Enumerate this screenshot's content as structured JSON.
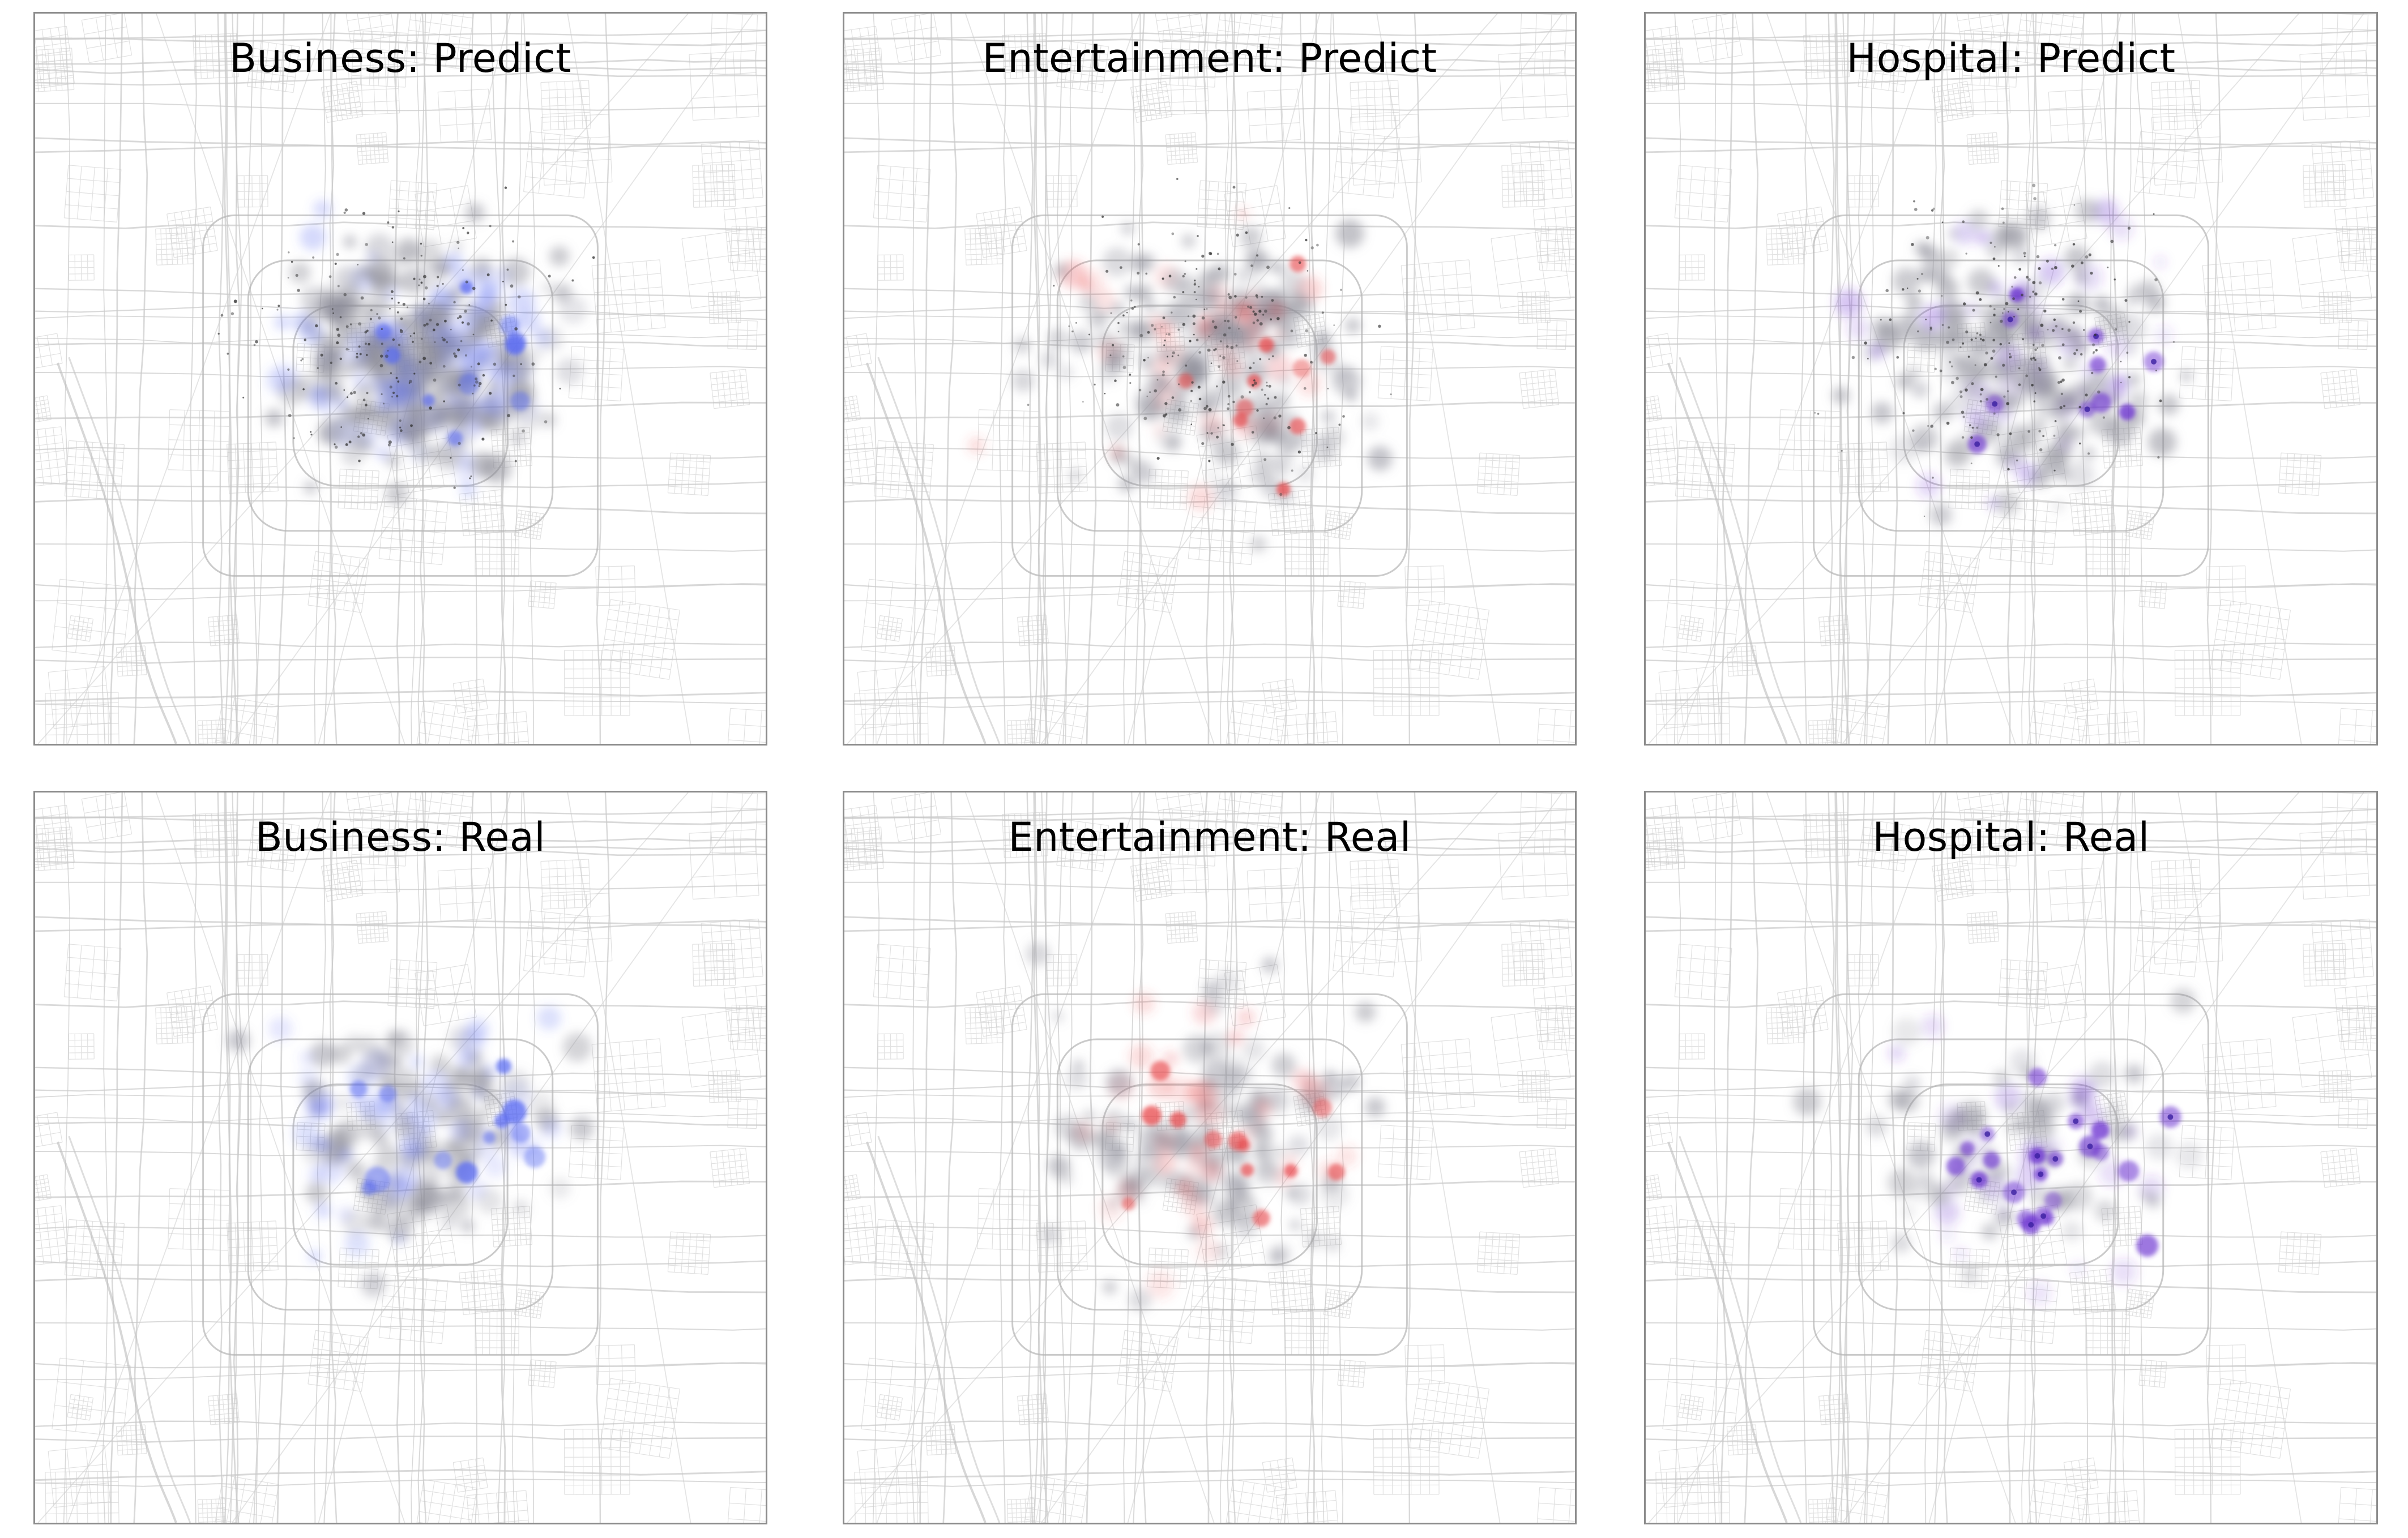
{
  "figure": {
    "panels": [
      {
        "title": "Business: Predict",
        "category": "business",
        "kind": "predict",
        "accent": "#5b6cf2"
      },
      {
        "title": "Entertainment: Predict",
        "category": "entertainment",
        "kind": "predict",
        "accent": "#e8474a"
      },
      {
        "title": "Hospital: Predict",
        "category": "hospital",
        "kind": "predict",
        "accent": "#6a2fd0"
      },
      {
        "title": "Business: Real",
        "category": "business",
        "kind": "real",
        "accent": "#5b6cf2"
      },
      {
        "title": "Entertainment: Real",
        "category": "entertainment",
        "kind": "real",
        "accent": "#e8474a"
      },
      {
        "title": "Hospital: Real",
        "category": "hospital",
        "kind": "real",
        "accent": "#6a2fd0"
      }
    ]
  },
  "colors": {
    "roads": "#c9c9c9",
    "ring_roads": "#b5b5b5",
    "density_gray": "#8a8a96",
    "panel_border": "#8c8c8c"
  }
}
